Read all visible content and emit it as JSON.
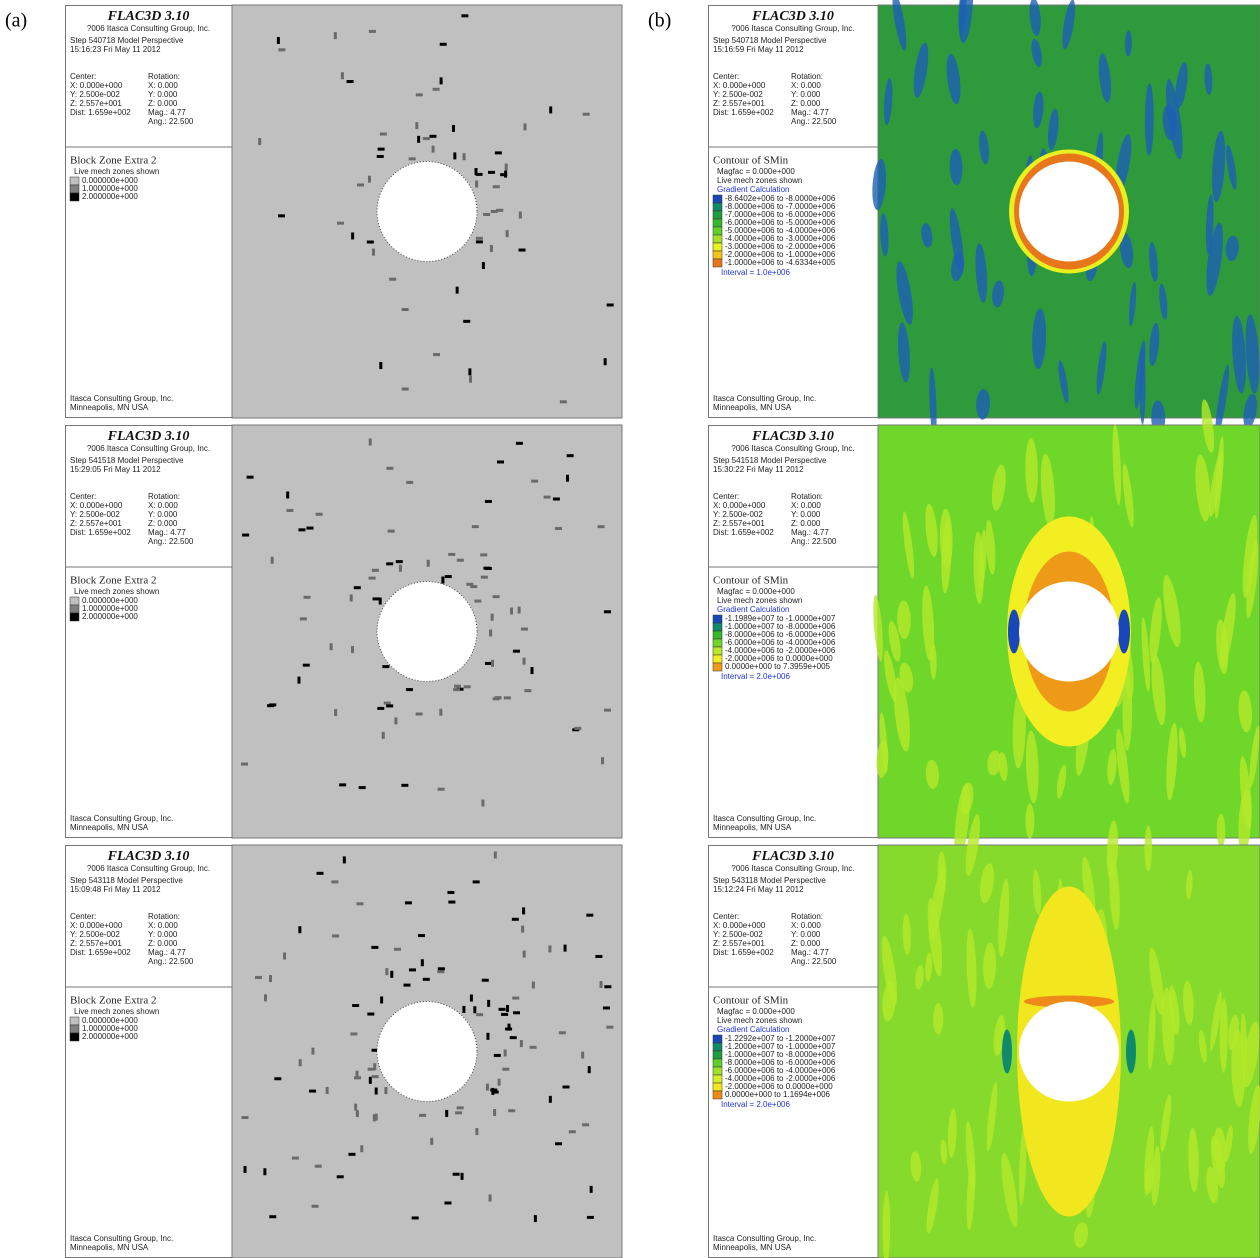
{
  "columns": [
    {
      "label": "(a)",
      "panels": [
        {
          "header": {
            "title": "FLAC3D 3.10",
            "copyright": "?006 Itasca Consulting Group, Inc.",
            "step": "Step 540718  Model Perspective",
            "time": "15:16:23 Fri May 11 2012"
          },
          "view": {
            "center_label": "Center:",
            "center": [
              "X: 0.000e+000",
              "Y: 2.500e-002",
              "Z: 2.557e+001",
              "Dist: 1.659e+002"
            ],
            "rotation_label": "Rotation:",
            "rotation": [
              "X:  0.000",
              "Y:  0.000",
              "Z:  0.000",
              "Mag.:   4.77",
              "Ang.:  22.500"
            ]
          },
          "legend": {
            "title": "Block Zone Extra 2",
            "title_color": "#c8c8c8",
            "lines": [
              "Live mech zones shown"
            ],
            "items": [
              {
                "label": "0.000000e+000",
                "color": "#c0c0c0"
              },
              {
                "label": "1.000000e+000",
                "color": "#808080"
              },
              {
                "label": "2.000000e+000",
                "color": "#000000"
              }
            ]
          },
          "field_color": "#c0c0c0",
          "footer": [
            "Itasca Consulting Group, Inc.",
            "Minneapolis, MN  USA"
          ]
        },
        {
          "header": {
            "title": "FLAC3D 3.10",
            "copyright": "?006 Itasca Consulting Group, Inc.",
            "step": "Step 541518  Model Perspective",
            "time": "15:29:05 Fri May 11 2012"
          },
          "view": {
            "center_label": "Center:",
            "center": [
              "X: 0.000e+000",
              "Y: 2.500e-002",
              "Z: 2.557e+001",
              "Dist: 1.659e+002"
            ],
            "rotation_label": "Rotation:",
            "rotation": [
              "X:  0.000",
              "Y:  0.000",
              "Z:  0.000",
              "Mag.:   4.77",
              "Ang.:  22.500"
            ]
          },
          "legend": {
            "title": "Block Zone Extra 2",
            "title_color": "#c8c8c8",
            "lines": [
              "Live mech zones shown"
            ],
            "items": [
              {
                "label": "0.000000e+000",
                "color": "#c0c0c0"
              },
              {
                "label": "1.000000e+000",
                "color": "#808080"
              },
              {
                "label": "2.000000e+000",
                "color": "#000000"
              }
            ]
          },
          "field_color": "#c0c0c0",
          "footer": [
            "Itasca Consulting Group, Inc.",
            "Minneapolis, MN  USA"
          ]
        },
        {
          "header": {
            "title": "FLAC3D 3.10",
            "copyright": "?006 Itasca Consulting Group, Inc.",
            "step": "Step 543118  Model Perspective",
            "time": "15:09:48 Fri May 11 2012"
          },
          "view": {
            "center_label": "Center:",
            "center": [
              "X: 0.000e+000",
              "Y: 2.500e-002",
              "Z: 2.557e+001",
              "Dist: 1.659e+002"
            ],
            "rotation_label": "Rotation:",
            "rotation": [
              "X:  0.000",
              "Y:  0.000",
              "Z:  0.000",
              "Mag.:   4.77",
              "Ang.:  22.500"
            ]
          },
          "legend": {
            "title": "Block Zone Extra 2",
            "title_color": "#c8c8c8",
            "lines": [
              "Live mech zones shown"
            ],
            "items": [
              {
                "label": "0.000000e+000",
                "color": "#c0c0c0"
              },
              {
                "label": "1.000000e+000",
                "color": "#808080"
              },
              {
                "label": "2.000000e+000",
                "color": "#000000"
              }
            ]
          },
          "field_color": "#c0c0c0",
          "footer": [
            "Itasca Consulting Group, Inc.",
            "Minneapolis, MN  USA"
          ]
        }
      ]
    },
    {
      "label": "(b)",
      "panels": [
        {
          "header": {
            "title": "FLAC3D 3.10",
            "copyright": "?006 Itasca Consulting Group, Inc.",
            "step": "Step 540718  Model Perspective",
            "time": "15:16:59 Fri May 11 2012"
          },
          "view": {
            "center_label": "Center:",
            "center": [
              "X: 0.000e+000",
              "Y: 2.500e-002",
              "Z: 2.557e+001",
              "Dist: 1.659e+002"
            ],
            "rotation_label": "Rotation:",
            "rotation": [
              "X:  0.000",
              "Y:  0.000",
              "Z:  0.000",
              "Mag.:   4.77",
              "Ang.:  22.500"
            ]
          },
          "legend": {
            "title": "Contour of SMin",
            "title_color": "#2233dd",
            "lines": [
              "Magfac =  0.000e+000",
              "Live mech zones shown"
            ],
            "method": "Gradient Calculation",
            "items": [
              {
                "label": "-8.6402e+006 to -8.0000e+006",
                "color": "#1747b8"
              },
              {
                "label": "-8.0000e+006 to -7.0000e+006",
                "color": "#118a6c"
              },
              {
                "label": "-7.0000e+006 to -6.0000e+006",
                "color": "#1e9e3c"
              },
              {
                "label": "-6.0000e+006 to -5.0000e+006",
                "color": "#35b82e"
              },
              {
                "label": "-5.0000e+006 to -4.0000e+006",
                "color": "#5fd02a"
              },
              {
                "label": "-4.0000e+006 to -3.0000e+006",
                "color": "#a6e02a"
              },
              {
                "label": "-3.0000e+006 to -2.0000e+006",
                "color": "#e8f020"
              },
              {
                "label": "-2.0000e+006 to -1.0000e+006",
                "color": "#f5c219"
              },
              {
                "label": "-1.0000e+006 to -4.6334e+005",
                "color": "#e8761a"
              }
            ],
            "interval": "Interval =  1.0e+006"
          },
          "field_color": "#2f9a3c",
          "footer": [
            "Itasca Consulting Group, Inc.",
            "Minneapolis, MN  USA"
          ]
        },
        {
          "header": {
            "title": "FLAC3D 3.10",
            "copyright": "?006 Itasca Consulting Group, Inc.",
            "step": "Step 541518  Model Perspective",
            "time": "15:30:22 Fri May 11 2012"
          },
          "view": {
            "center_label": "Center:",
            "center": [
              "X: 0.000e+000",
              "Y: 2.500e-002",
              "Z: 2.557e+001",
              "Dist: 1.659e+002"
            ],
            "rotation_label": "Rotation:",
            "rotation": [
              "X:  0.000",
              "Y:  0.000",
              "Z:  0.000",
              "Mag.:   4.77",
              "Ang.:  22.500"
            ]
          },
          "legend": {
            "title": "Contour of SMin",
            "title_color": "#2233dd",
            "lines": [
              "Magfac =  0.000e+000",
              "Live mech zones shown"
            ],
            "method": "Gradient Calculation",
            "items": [
              {
                "label": "-1.1989e+007 to -1.0000e+007",
                "color": "#1747b8"
              },
              {
                "label": "-1.0000e+007 to -8.0000e+006",
                "color": "#118a6c"
              },
              {
                "label": "-8.0000e+006 to -6.0000e+006",
                "color": "#35b82e"
              },
              {
                "label": "-6.0000e+006 to -4.0000e+006",
                "color": "#6fd62a"
              },
              {
                "label": "-4.0000e+006 to -2.0000e+006",
                "color": "#b8e82a"
              },
              {
                "label": "-2.0000e+006 to  0.0000e+000",
                "color": "#f2ee22"
              },
              {
                "label": " 0.0000e+000 to  7.3959e+005",
                "color": "#ee9a18"
              }
            ],
            "interval": "Interval =  2.0e+006"
          },
          "field_color": "#6fd62a",
          "footer": [
            "Itasca Consulting Group, Inc.",
            "Minneapolis, MN  USA"
          ]
        },
        {
          "header": {
            "title": "FLAC3D 3.10",
            "copyright": "?006 Itasca Consulting Group, Inc.",
            "step": "Step 543118  Model Perspective",
            "time": "15:12:24 Fri May 11 2012"
          },
          "view": {
            "center_label": "Center:",
            "center": [
              "X: 0.000e+000",
              "Y: 2.500e-002",
              "Z: 2.557e+001",
              "Dist: 1.659e+002"
            ],
            "rotation_label": "Rotation:",
            "rotation": [
              "X:  0.000",
              "Y:  0.000",
              "Z:  0.000",
              "Mag.:   4.77",
              "Ang.:  22.500"
            ]
          },
          "legend": {
            "title": "Contour of SMin",
            "title_color": "#2233dd",
            "lines": [
              "Magfac =  0.000e+000",
              "Live mech zones shown"
            ],
            "method": "Gradient Calculation",
            "items": [
              {
                "label": "-1.2292e+007 to -1.2000e+007",
                "color": "#1747b8"
              },
              {
                "label": "-1.2000e+007 to -1.0000e+007",
                "color": "#118a6c"
              },
              {
                "label": "-1.0000e+007 to -8.0000e+006",
                "color": "#1e9e3c"
              },
              {
                "label": "-8.0000e+006 to -6.0000e+006",
                "color": "#5fd02a"
              },
              {
                "label": "-6.0000e+006 to -4.0000e+006",
                "color": "#9ee02a"
              },
              {
                "label": "-4.0000e+006 to -2.0000e+006",
                "color": "#d8ee26"
              },
              {
                "label": "-2.0000e+006 to  0.0000e+000",
                "color": "#f2e61e"
              },
              {
                "label": " 0.0000e+000 to  1.1694e+006",
                "color": "#ee8a18"
              }
            ],
            "interval": "Interval =  2.0e+006"
          },
          "field_color": "#86da2c",
          "footer": [
            "Itasca Consulting Group, Inc.",
            "Minneapolis, MN  USA"
          ]
        }
      ]
    }
  ]
}
